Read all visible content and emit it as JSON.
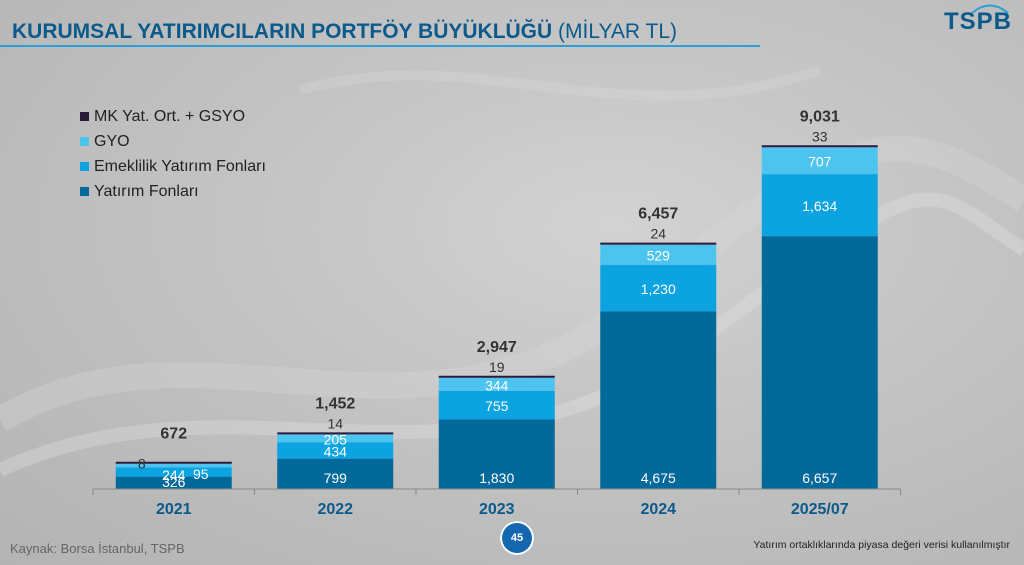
{
  "header": {
    "title": "KURUMSAL YATIRIMCILARIN PORTFÖY BÜYÜKLÜĞÜ",
    "unit": "(MİLYAR TL)",
    "logo": "TSPB"
  },
  "footer": {
    "source": "Kaynak: Borsa İstanbul, TSPB",
    "page_number": "45",
    "note": "Yatırım ortaklıklarında piyasa değeri verisi kullanılmıştır"
  },
  "colors": {
    "title": "#0a5a8c",
    "rule": "#2a9fd8",
    "series": [
      "#03689a",
      "#0ba3e0",
      "#4dc3f0",
      "#2b1a3a"
    ]
  },
  "chart_data": {
    "type": "bar",
    "stacked": true,
    "categories": [
      "2021",
      "2022",
      "2023",
      "2024",
      "2025/07"
    ],
    "series": [
      {
        "name": "Yatırım Fonları",
        "values": [
          326,
          799,
          1830,
          4675,
          6657
        ],
        "labels": [
          "326",
          "799",
          "1,830",
          "4,675",
          "6,657"
        ]
      },
      {
        "name": "Emeklilik Yatırım Fonları",
        "values": [
          244,
          434,
          755,
          1230,
          1634
        ],
        "labels": [
          "244",
          "434",
          "755",
          "1,230",
          "1,634"
        ]
      },
      {
        "name": "GYO",
        "values": [
          95,
          205,
          344,
          529,
          707
        ],
        "labels": [
          "95",
          "205",
          "344",
          "529",
          "707"
        ]
      },
      {
        "name": "MK Yat. Ort. + GSYO",
        "values": [
          8,
          14,
          19,
          24,
          33
        ],
        "labels": [
          "8",
          "14",
          "19",
          "24",
          "33"
        ]
      }
    ],
    "totals": [
      672,
      1452,
      2947,
      6457,
      9031
    ],
    "total_labels": [
      "672",
      "1,452",
      "2,947",
      "6,457",
      "9,031"
    ],
    "legend_order": [
      "MK Yat. Ort. + GSYO",
      "GYO",
      "Emeklilik Yatırım Fonları",
      "Yatırım Fonları"
    ],
    "legend_position": "top-left",
    "ylim": [
      0,
      9031
    ],
    "grid": false
  }
}
